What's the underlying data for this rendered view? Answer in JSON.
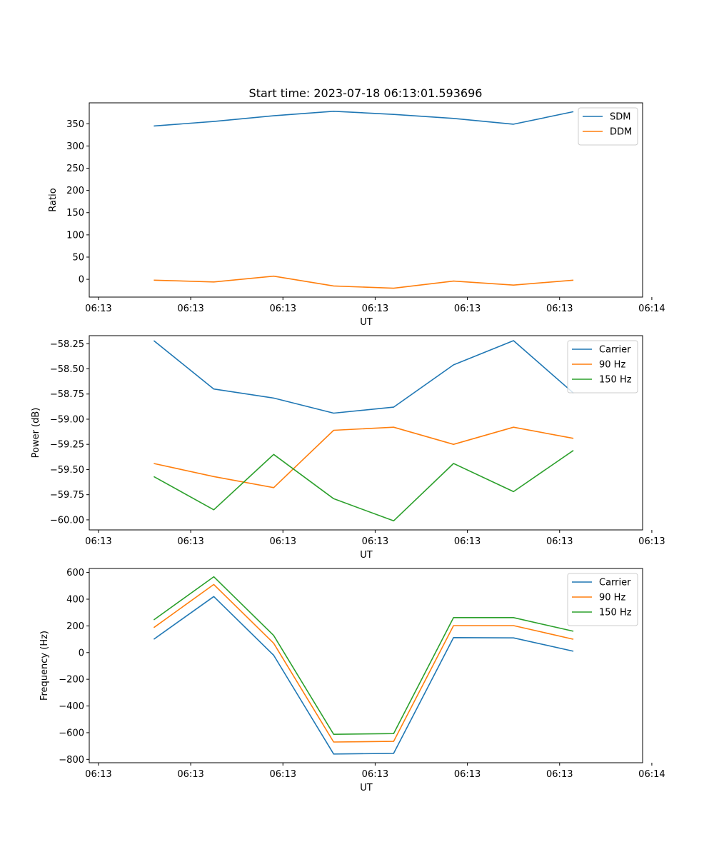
{
  "figure_title": "Start time: 2023-07-18 06:13:01.593696",
  "chart_data": [
    {
      "type": "line",
      "title": "Start time: 2023-07-18 06:13:01.593696",
      "xlabel": "UT",
      "ylabel": "Ratio",
      "x": [
        0.6,
        1.25,
        1.9,
        2.55,
        3.2,
        3.85,
        4.5,
        5.15
      ],
      "xlim": [
        -0.1,
        5.9
      ],
      "xticks": [
        0,
        1,
        2,
        3,
        4,
        5,
        6
      ],
      "xtick_labels": [
        "06:13",
        "06:13",
        "06:13",
        "06:13",
        "06:13",
        "06:13",
        "06:14"
      ],
      "ylim": [
        -40,
        397
      ],
      "yticks": [
        0,
        50,
        100,
        150,
        200,
        250,
        300,
        350
      ],
      "ytick_labels": [
        "0",
        "50",
        "100",
        "150",
        "200",
        "250",
        "300",
        "350"
      ],
      "legend_position": "top-right",
      "series": [
        {
          "name": "SDM",
          "color": "#1f77b4",
          "values": [
            345,
            355,
            368,
            378,
            371,
            362,
            349,
            377
          ]
        },
        {
          "name": "DDM",
          "color": "#ff7f0e",
          "values": [
            -2,
            -6,
            7,
            -15,
            -20,
            -4,
            -13,
            -2
          ]
        }
      ]
    },
    {
      "type": "line",
      "title": "",
      "xlabel": "UT",
      "ylabel": "Power (dB)",
      "x": [
        0.6,
        1.25,
        1.9,
        2.55,
        3.2,
        3.85,
        4.5,
        5.15
      ],
      "xlim": [
        -0.1,
        5.9
      ],
      "xticks": [
        0,
        1,
        2,
        3,
        4,
        5,
        6
      ],
      "xtick_labels": [
        "06:13",
        "06:13",
        "06:13",
        "06:13",
        "06:13",
        "06:13",
        "06:13"
      ],
      "ylim": [
        -60.1,
        -58.17
      ],
      "yticks": [
        -60.0,
        -59.75,
        -59.5,
        -59.25,
        -59.0,
        -58.75,
        -58.5,
        -58.25
      ],
      "ytick_labels": [
        "−60.00",
        "−59.75",
        "−59.50",
        "−59.25",
        "−59.00",
        "−58.75",
        "−58.50",
        "−58.25"
      ],
      "legend_position": "top-right",
      "series": [
        {
          "name": "Carrier",
          "color": "#1f77b4",
          "values": [
            -58.22,
            -58.7,
            -58.79,
            -58.94,
            -58.88,
            -58.46,
            -58.22,
            -58.74
          ]
        },
        {
          "name": "90 Hz",
          "color": "#ff7f0e",
          "values": [
            -59.44,
            -59.57,
            -59.68,
            -59.11,
            -59.08,
            -59.25,
            -59.08,
            -59.19
          ]
        },
        {
          "name": "150 Hz",
          "color": "#2ca02c",
          "values": [
            -59.57,
            -59.9,
            -59.35,
            -59.79,
            -60.01,
            -59.44,
            -59.72,
            -59.31
          ]
        }
      ]
    },
    {
      "type": "line",
      "title": "",
      "xlabel": "UT",
      "ylabel": "Frequency (Hz)",
      "x": [
        0.6,
        1.25,
        1.9,
        2.55,
        3.2,
        3.85,
        4.5,
        5.15
      ],
      "xlim": [
        -0.1,
        5.9
      ],
      "xticks": [
        0,
        1,
        2,
        3,
        4,
        5,
        6
      ],
      "xtick_labels": [
        "06:13",
        "06:13",
        "06:13",
        "06:13",
        "06:13",
        "06:13",
        "06:14"
      ],
      "ylim": [
        -825,
        630
      ],
      "yticks": [
        -800,
        -600,
        -400,
        -200,
        0,
        200,
        400,
        600
      ],
      "ytick_labels": [
        "−800",
        "−600",
        "−400",
        "−200",
        "0",
        "200",
        "400",
        "600"
      ],
      "legend_position": "top-right",
      "series": [
        {
          "name": "Carrier",
          "color": "#1f77b4",
          "values": [
            100,
            420,
            -20,
            -760,
            -755,
            112,
            110,
            10
          ]
        },
        {
          "name": "90 Hz",
          "color": "#ff7f0e",
          "values": [
            187,
            510,
            70,
            -670,
            -665,
            202,
            202,
            100
          ]
        },
        {
          "name": "150 Hz",
          "color": "#2ca02c",
          "values": [
            245,
            568,
            128,
            -612,
            -607,
            262,
            262,
            160
          ]
        }
      ]
    }
  ]
}
